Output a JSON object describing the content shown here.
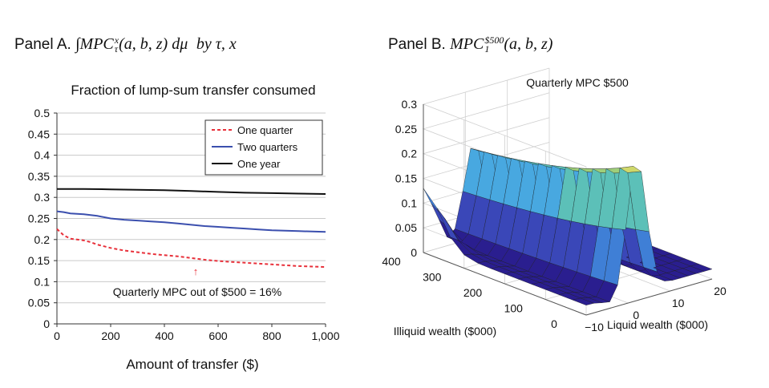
{
  "panel_a": {
    "title_prefix": "Panel A.",
    "title_math": "∫MPC",
    "title_sup": "x",
    "title_sub": "τ",
    "title_args": "(a, b, z) dμ",
    "title_by": "by τ, x"
  },
  "panel_b": {
    "title_prefix": "Panel B.",
    "title_math": "MPC",
    "title_sup": "$500",
    "title_sub": "1",
    "title_args": "(a, b, z)"
  },
  "chart_data": [
    {
      "type": "line",
      "title": "Fraction of lump-sum transfer consumed",
      "xlabel": "Amount of transfer ($)",
      "ylabel": "",
      "xlim": [
        0,
        1000
      ],
      "ylim": [
        0,
        0.5
      ],
      "x_ticks": [
        0,
        200,
        400,
        600,
        800,
        1000
      ],
      "x_tick_labels": [
        "0",
        "200",
        "400",
        "600",
        "800",
        "1,000"
      ],
      "y_ticks": [
        0,
        0.05,
        0.1,
        0.15,
        0.2,
        0.25,
        0.3,
        0.35,
        0.4,
        0.45,
        0.5
      ],
      "y_tick_labels": [
        "0",
        "0.05",
        "0.1",
        "0.15",
        "0.2",
        "0.25",
        "0.3",
        "0.35",
        "0.4",
        "0.45",
        "0.5"
      ],
      "grid": "horizontal",
      "legend": "top-right",
      "series": [
        {
          "name": "One quarter",
          "color": "#e8303a",
          "style": "dashed",
          "x": [
            0,
            25,
            50,
            75,
            100,
            125,
            150,
            200,
            250,
            300,
            350,
            400,
            450,
            500,
            550,
            600,
            650,
            700,
            750,
            800,
            850,
            900,
            950,
            1000
          ],
          "y": [
            0.225,
            0.21,
            0.202,
            0.2,
            0.198,
            0.194,
            0.188,
            0.18,
            0.174,
            0.17,
            0.166,
            0.163,
            0.16,
            0.156,
            0.152,
            0.149,
            0.147,
            0.145,
            0.143,
            0.141,
            0.139,
            0.137,
            0.136,
            0.135
          ]
        },
        {
          "name": "Two quarters",
          "color": "#3b4fae",
          "style": "solid",
          "x": [
            0,
            25,
            50,
            75,
            100,
            150,
            200,
            250,
            300,
            350,
            400,
            450,
            500,
            550,
            600,
            650,
            700,
            750,
            800,
            850,
            900,
            950,
            1000
          ],
          "y": [
            0.267,
            0.265,
            0.262,
            0.261,
            0.26,
            0.256,
            0.25,
            0.247,
            0.245,
            0.243,
            0.241,
            0.238,
            0.235,
            0.232,
            0.23,
            0.228,
            0.226,
            0.224,
            0.222,
            0.221,
            0.22,
            0.219,
            0.218
          ]
        },
        {
          "name": "One year",
          "color": "#111111",
          "style": "solid",
          "x": [
            0,
            100,
            200,
            300,
            400,
            500,
            600,
            700,
            800,
            900,
            1000
          ],
          "y": [
            0.32,
            0.32,
            0.319,
            0.318,
            0.317,
            0.315,
            0.313,
            0.311,
            0.31,
            0.309,
            0.308
          ]
        }
      ],
      "annotations": [
        {
          "text": "Quarterly MPC out of $500 = 16%",
          "x": 500,
          "y": 0.1
        },
        {
          "text": "↑",
          "x": 510,
          "y": 0.128
        }
      ]
    },
    {
      "type": "surface",
      "title": "Quarterly MPC $500",
      "xlabel": "Liquid wealth ($000)",
      "ylabel": "Illiquid wealth ($000)",
      "zlabel": "",
      "xlim": [
        -10,
        20
      ],
      "ylim": [
        0,
        400
      ],
      "zlim": [
        0,
        0.3
      ],
      "x_ticks": [
        "−10",
        "0",
        "10",
        "20"
      ],
      "y_ticks": [
        "0",
        "100",
        "200",
        "300",
        "400"
      ],
      "z_ticks": [
        "0",
        "0.05",
        "0.1",
        "0.15",
        "0.2",
        "0.25",
        "0.3"
      ],
      "colormap": [
        "#2a1e8f",
        "#3a47b8",
        "#3f7fd6",
        "#48a8e0",
        "#5cc0b8",
        "#9fcf7a",
        "#cfd86a"
      ]
    }
  ]
}
